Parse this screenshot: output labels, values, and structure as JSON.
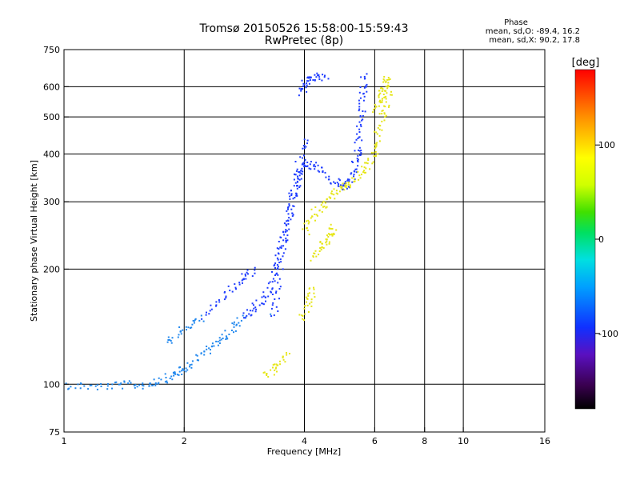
{
  "chart_data": {
    "type": "scatter",
    "title": "Tromsø 20150526 15:58:00-15:59:43",
    "subtitle": "RwPretec (8p)",
    "xlabel": "Frequency [MHz]",
    "ylabel": "Stationary phase Virtual Height [km]",
    "x_scale": "log",
    "y_scale": "log",
    "xlim": [
      1,
      16
    ],
    "ylim": [
      75,
      750
    ],
    "x_ticks": [
      1,
      2,
      4,
      6,
      8,
      10,
      16
    ],
    "x_tick_labels": [
      "1",
      "2",
      "4",
      "6",
      "8",
      "10",
      "16"
    ],
    "y_ticks": [
      75,
      100,
      200,
      300,
      400,
      500,
      600,
      750
    ],
    "y_tick_labels": [
      "75",
      "100",
      "200",
      "300",
      "400",
      "500",
      "600",
      "750"
    ],
    "grid": true,
    "stats": {
      "heading": "Phase",
      "line_o": "mean, sd,O: -89.4, 16.2",
      "line_x": "mean, sd,X:  90.2, 17.8"
    },
    "colorbar": {
      "label": "[deg]",
      "range": [
        -180,
        180
      ],
      "ticks": [
        100,
        0,
        -100
      ],
      "tick_labels": [
        "100",
        "0",
        "-100"
      ]
    },
    "colors": {
      "o_mode": "#1e3cff",
      "o_mode_low": "#2288ee",
      "x_mode": "#e6e61a"
    },
    "series": [
      {
        "mode": "O",
        "phase_deg": -90,
        "traces": [
          [
            [
              1.0,
              100
            ],
            [
              1.2,
              99
            ],
            [
              1.4,
              100
            ],
            [
              1.6,
              100
            ],
            [
              1.75,
              103
            ],
            [
              1.9,
              107
            ],
            [
              2.0,
              110
            ],
            [
              2.2,
              120
            ],
            [
              2.4,
              130
            ],
            [
              2.6,
              138
            ],
            [
              2.8,
              150
            ],
            [
              3.0,
              160
            ],
            [
              3.2,
              172
            ],
            [
              3.4,
              200
            ],
            [
              3.5,
              230
            ],
            [
              3.6,
              260
            ],
            [
              3.7,
              300
            ],
            [
              3.8,
              330
            ],
            [
              3.9,
              360
            ],
            [
              4.0,
              380
            ],
            [
              4.3,
              370
            ],
            [
              4.7,
              340
            ],
            [
              5.0,
              330
            ],
            [
              5.2,
              345
            ],
            [
              5.35,
              380
            ],
            [
              5.45,
              430
            ],
            [
              5.55,
              500
            ],
            [
              5.6,
              580
            ],
            [
              5.65,
              640
            ]
          ],
          [
            [
              3.35,
              150
            ],
            [
              3.4,
              180
            ],
            [
              3.5,
              230
            ],
            [
              3.7,
              300
            ],
            [
              3.9,
              390
            ],
            [
              4.0,
              440
            ]
          ],
          [
            [
              1.8,
              130
            ],
            [
              2.0,
              140
            ],
            [
              2.2,
              150
            ],
            [
              2.5,
              170
            ],
            [
              2.8,
              190
            ],
            [
              3.0,
              200
            ]
          ],
          [
            [
              3.9,
              580
            ],
            [
              4.0,
              620
            ],
            [
              4.2,
              640
            ],
            [
              4.5,
              640
            ]
          ]
        ]
      },
      {
        "mode": "X",
        "phase_deg": 90,
        "traces": [
          [
            [
              3.2,
              105
            ],
            [
              3.4,
              112
            ],
            [
              3.6,
              120
            ]
          ],
          [
            [
              3.9,
              150
            ],
            [
              4.1,
              165
            ],
            [
              4.2,
              180
            ]
          ],
          [
            [
              4.0,
              250
            ],
            [
              4.2,
              280
            ],
            [
              4.5,
              300
            ],
            [
              4.8,
              320
            ],
            [
              5.0,
              330
            ],
            [
              5.4,
              350
            ],
            [
              5.8,
              380
            ],
            [
              6.0,
              420
            ],
            [
              6.2,
              480
            ],
            [
              6.4,
              550
            ],
            [
              6.5,
              620
            ]
          ],
          [
            [
              4.2,
              215
            ],
            [
              4.4,
              230
            ],
            [
              4.6,
              245
            ],
            [
              4.7,
              260
            ]
          ],
          [
            [
              6.0,
              520
            ],
            [
              6.2,
              560
            ],
            [
              6.3,
              600
            ],
            [
              6.4,
              640
            ]
          ]
        ]
      }
    ]
  }
}
